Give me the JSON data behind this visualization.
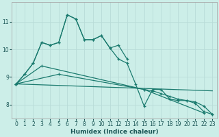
{
  "xlabel": "Humidex (Indice chaleur)",
  "bg_color": "#cceee8",
  "line_color": "#1a7a6e",
  "grid_color": "#b8dcd8",
  "xlim": [
    -0.5,
    23.5
  ],
  "ylim": [
    7.5,
    11.7
  ],
  "yticks": [
    8,
    9,
    10,
    11
  ],
  "xticks": [
    0,
    1,
    2,
    3,
    4,
    5,
    6,
    7,
    8,
    9,
    10,
    11,
    12,
    13,
    14,
    15,
    16,
    17,
    18,
    19,
    20,
    21,
    22,
    23
  ],
  "line1_x": [
    0,
    1,
    2,
    3,
    4,
    5,
    6,
    7,
    8,
    9,
    10,
    11,
    12,
    13
  ],
  "line1_y": [
    8.75,
    9.1,
    9.5,
    10.25,
    10.15,
    10.25,
    11.25,
    11.1,
    10.35,
    10.35,
    10.5,
    10.05,
    10.15,
    9.65
  ],
  "line2_x": [
    0,
    1,
    2,
    3,
    4,
    5,
    6,
    7,
    8,
    9,
    10,
    11,
    12,
    13,
    14,
    15,
    16,
    17,
    18,
    19,
    20,
    21,
    22,
    23
  ],
  "line2_y": [
    8.75,
    9.1,
    9.5,
    10.25,
    10.15,
    10.25,
    11.25,
    11.1,
    10.35,
    10.35,
    10.5,
    10.05,
    9.65,
    9.5,
    8.75,
    7.95,
    8.55,
    8.55,
    8.2,
    8.15,
    8.15,
    8.05,
    7.75,
    7.65
  ],
  "line3_x": [
    0,
    3,
    15,
    22
  ],
  "line3_y": [
    8.75,
    9.4,
    8.55,
    7.7
  ],
  "line4_x": [
    0,
    5,
    15,
    16,
    17,
    18,
    19,
    20,
    21,
    22,
    23
  ],
  "line4_y": [
    8.75,
    9.1,
    8.55,
    8.5,
    8.4,
    8.3,
    8.2,
    8.15,
    8.1,
    7.95,
    7.65
  ],
  "line5_x": [
    0,
    23
  ],
  "line5_y": [
    8.75,
    8.5
  ]
}
